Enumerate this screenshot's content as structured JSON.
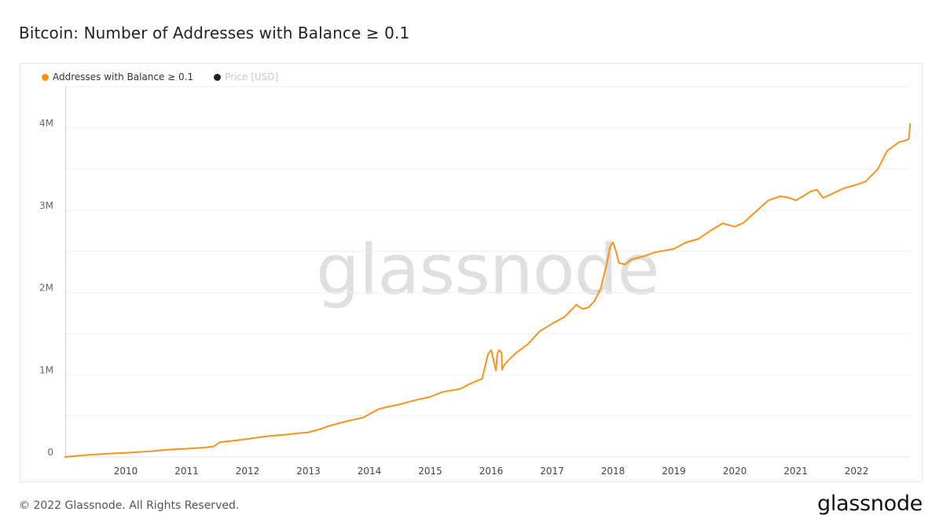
{
  "header": {
    "title": "Bitcoin: Number of Addresses with Balance ≥ 0.1"
  },
  "footer": {
    "copyright": "© 2022 Glassnode. All Rights Reserved.",
    "brand": "glassnode"
  },
  "watermark": "glassnode",
  "colors": {
    "series": "#f7931a",
    "price": "#222222",
    "grid": "#eeeeee",
    "axis_text": "#666666"
  },
  "chart_data": {
    "type": "line",
    "title": "Bitcoin: Number of Addresses with Balance ≥ 0.1",
    "xlabel": "",
    "ylabel": "",
    "legend": [
      {
        "name": "Addresses with Balance ≥ 0.1",
        "color": "#f7931a",
        "active": true
      },
      {
        "name": "Price [USD]",
        "color": "#222222",
        "active": false
      }
    ],
    "legend_position": "top-left",
    "grid": true,
    "xlim": [
      2009.0,
      2022.88
    ],
    "ylim": [
      0,
      4500000
    ],
    "x_ticks": [
      {
        "label": "2010",
        "value": 2010.0
      },
      {
        "label": "2011",
        "value": 2011.0
      },
      {
        "label": "2012",
        "value": 2012.0
      },
      {
        "label": "2013",
        "value": 2013.0
      },
      {
        "label": "2014",
        "value": 2014.0
      },
      {
        "label": "2015",
        "value": 2015.0
      },
      {
        "label": "2016",
        "value": 2016.0
      },
      {
        "label": "2017",
        "value": 2017.0
      },
      {
        "label": "2018",
        "value": 2018.0
      },
      {
        "label": "2019",
        "value": 2019.0
      },
      {
        "label": "2020",
        "value": 2020.0
      },
      {
        "label": "2021",
        "value": 2021.0
      },
      {
        "label": "2022",
        "value": 2022.0
      }
    ],
    "y_ticks": [
      {
        "label": "0",
        "value": 0
      },
      {
        "label": "1M",
        "value": 1000000
      },
      {
        "label": "2M",
        "value": 2000000
      },
      {
        "label": "3M",
        "value": 3000000
      },
      {
        "label": "4M",
        "value": 4000000
      }
    ],
    "series": [
      {
        "name": "Addresses with Balance ≥ 0.1",
        "x": [
          2009.0,
          2009.3,
          2009.7,
          2010.0,
          2010.4,
          2010.7,
          2011.0,
          2011.3,
          2011.45,
          2011.55,
          2011.8,
          2012.0,
          2012.3,
          2012.6,
          2012.85,
          2013.0,
          2013.2,
          2013.35,
          2013.6,
          2013.9,
          2014.0,
          2014.15,
          2014.3,
          2014.5,
          2014.75,
          2015.0,
          2015.2,
          2015.35,
          2015.5,
          2015.65,
          2015.85,
          2015.95,
          2016.0,
          2016.08,
          2016.1,
          2016.13,
          2016.17,
          2016.18,
          2016.2,
          2016.25,
          2016.4,
          2016.6,
          2016.8,
          2017.0,
          2017.2,
          2017.4,
          2017.5,
          2017.6,
          2017.7,
          2017.8,
          2017.9,
          2017.95,
          2018.0,
          2018.05,
          2018.1,
          2018.2,
          2018.3,
          2018.5,
          2018.7,
          2019.0,
          2019.2,
          2019.4,
          2019.6,
          2019.8,
          2020.0,
          2020.15,
          2020.25,
          2020.4,
          2020.55,
          2020.75,
          2020.9,
          2021.0,
          2021.1,
          2021.25,
          2021.35,
          2021.45,
          2021.6,
          2021.8,
          2022.0,
          2022.15,
          2022.35,
          2022.5,
          2022.7,
          2022.82,
          2022.86,
          2022.88
        ],
        "values": [
          0,
          20000,
          40000,
          50000,
          70000,
          90000,
          100000,
          115000,
          130000,
          180000,
          200000,
          220000,
          250000,
          270000,
          290000,
          300000,
          340000,
          380000,
          430000,
          480000,
          520000,
          580000,
          610000,
          640000,
          690000,
          730000,
          790000,
          810000,
          830000,
          890000,
          950000,
          1250000,
          1300000,
          1050000,
          1250000,
          1300000,
          1270000,
          1060000,
          1100000,
          1150000,
          1260000,
          1370000,
          1530000,
          1620000,
          1700000,
          1850000,
          1800000,
          1820000,
          1900000,
          2050000,
          2350000,
          2550000,
          2610000,
          2500000,
          2360000,
          2340000,
          2400000,
          2440000,
          2490000,
          2530000,
          2610000,
          2650000,
          2750000,
          2840000,
          2800000,
          2850000,
          2920000,
          3020000,
          3120000,
          3170000,
          3150000,
          3120000,
          3160000,
          3230000,
          3250000,
          3150000,
          3200000,
          3270000,
          3310000,
          3350000,
          3500000,
          3720000,
          3830000,
          3850000,
          3870000,
          4050000
        ]
      }
    ]
  }
}
